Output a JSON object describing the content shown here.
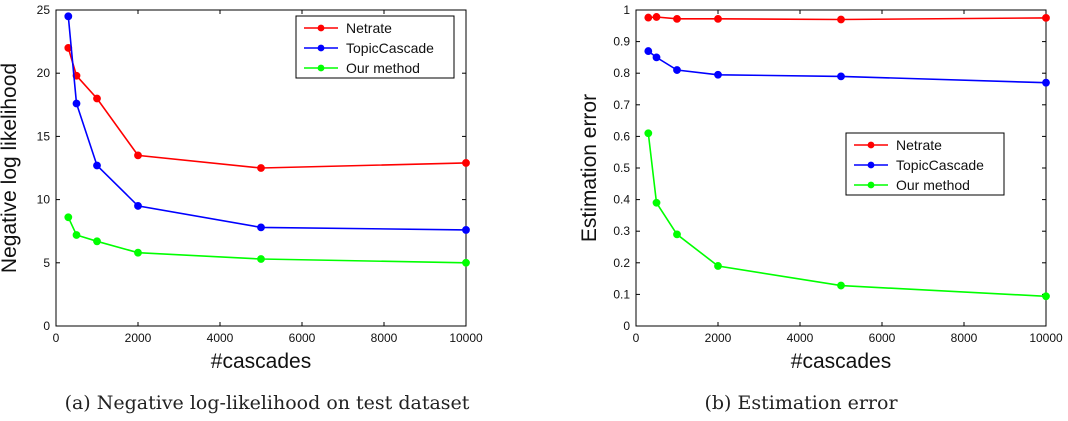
{
  "chart_data": [
    {
      "type": "line",
      "xlabel": "#cascades",
      "ylabel": "Negative log likelihood",
      "xlim": [
        0,
        10000
      ],
      "ylim": [
        0,
        25
      ],
      "xticks": [
        0,
        2000,
        4000,
        6000,
        8000,
        10000
      ],
      "yticks": [
        0,
        5,
        10,
        15,
        20,
        25
      ],
      "legend_position": "top-right",
      "grid": false,
      "x": [
        300,
        500,
        1000,
        2000,
        5000,
        10000
      ],
      "series": [
        {
          "name": "Netrate",
          "color": "#ff0000",
          "values": [
            22.0,
            19.8,
            18.0,
            13.5,
            12.5,
            12.9
          ]
        },
        {
          "name": "TopicCascade",
          "color": "#0000ff",
          "values": [
            24.5,
            17.6,
            12.7,
            9.5,
            7.8,
            7.6
          ]
        },
        {
          "name": "Our method",
          "color": "#00ff00",
          "values": [
            8.6,
            7.2,
            6.7,
            5.8,
            5.3,
            5.0
          ]
        }
      ],
      "caption": "(a) Negative log-likelihood on test dataset"
    },
    {
      "type": "line",
      "xlabel": "#cascades",
      "ylabel": "Estimation error",
      "xlim": [
        0,
        10000
      ],
      "ylim": [
        0,
        1
      ],
      "xticks": [
        0,
        2000,
        4000,
        6000,
        8000,
        10000
      ],
      "yticks": [
        0,
        0.1,
        0.2,
        0.3,
        0.4,
        0.5,
        0.6,
        0.7,
        0.8,
        0.9,
        1
      ],
      "legend_position": "center-right",
      "grid": false,
      "x": [
        300,
        500,
        1000,
        2000,
        5000,
        10000
      ],
      "series": [
        {
          "name": "Netrate",
          "color": "#ff0000",
          "values": [
            0.976,
            0.978,
            0.972,
            0.972,
            0.97,
            0.975
          ]
        },
        {
          "name": "TopicCascade",
          "color": "#0000ff",
          "values": [
            0.87,
            0.85,
            0.81,
            0.795,
            0.79,
            0.77
          ]
        },
        {
          "name": "Our method",
          "color": "#00ff00",
          "values": [
            0.61,
            0.39,
            0.29,
            0.19,
            0.128,
            0.094
          ]
        }
      ],
      "caption": "(b) Estimation error"
    }
  ]
}
